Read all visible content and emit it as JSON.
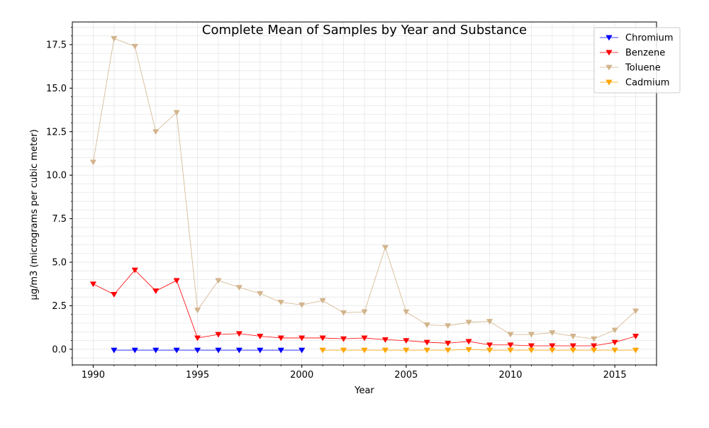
{
  "chart_data": {
    "type": "line",
    "title": "Complete Mean of Samples by Year and Substance",
    "xlabel": "Year",
    "ylabel": "μg/m3 (micrograms per cubic meter)",
    "xlim": [
      1989,
      2017
    ],
    "ylim": [
      -0.9,
      18.8
    ],
    "x_ticks": [
      1990,
      1995,
      2000,
      2005,
      2010,
      2015
    ],
    "x_tick_labels": [
      "1990",
      "1995",
      "2000",
      "2005",
      "2010",
      "2015"
    ],
    "y_ticks": [
      0,
      2.5,
      5,
      7.5,
      10,
      12.5,
      15,
      17.5
    ],
    "y_tick_labels": [
      "0.0",
      "2.5",
      "5.0",
      "7.5",
      "10.0",
      "12.5",
      "15.0",
      "17.5"
    ],
    "grid": true,
    "legend_position": "top-right",
    "series": [
      {
        "name": "Chromium",
        "color": "#0000ff",
        "x": [
          1991,
          1992,
          1993,
          1994,
          1995,
          1996,
          1997,
          1998,
          1999,
          2000
        ],
        "y": [
          -0.05,
          -0.05,
          -0.05,
          -0.05,
          -0.05,
          -0.05,
          -0.05,
          -0.05,
          -0.05,
          -0.05
        ]
      },
      {
        "name": "Benzene",
        "color": "#ff0000",
        "x": [
          1990,
          1991,
          1992,
          1993,
          1994,
          1995,
          1996,
          1997,
          1998,
          1999,
          2000,
          2001,
          2002,
          2003,
          2004,
          2005,
          2006,
          2007,
          2008,
          2009,
          2010,
          2011,
          2012,
          2013,
          2014,
          2015,
          2016
        ],
        "y": [
          3.75,
          3.15,
          4.55,
          3.35,
          3.95,
          0.65,
          0.85,
          0.9,
          0.75,
          0.65,
          0.65,
          0.65,
          0.6,
          0.65,
          0.55,
          0.5,
          0.4,
          0.35,
          0.45,
          0.25,
          0.25,
          0.2,
          0.2,
          0.2,
          0.2,
          0.4,
          0.75
        ]
      },
      {
        "name": "Toluene",
        "color": "#d2b48c",
        "x": [
          1990,
          1991,
          1992,
          1993,
          1994,
          1995,
          1996,
          1997,
          1998,
          1999,
          2000,
          2001,
          2002,
          2003,
          2004,
          2005,
          2006,
          2007,
          2008,
          2009,
          2010,
          2011,
          2012,
          2013,
          2014,
          2015,
          2016
        ],
        "y": [
          10.75,
          17.85,
          17.4,
          12.5,
          13.6,
          2.25,
          3.95,
          3.55,
          3.2,
          2.7,
          2.55,
          2.8,
          2.1,
          2.15,
          5.85,
          2.15,
          1.4,
          1.35,
          1.55,
          1.6,
          0.85,
          0.85,
          0.95,
          0.75,
          0.6,
          1.1,
          2.2
        ]
      },
      {
        "name": "Cadmium",
        "color": "#ffa500",
        "x": [
          2001,
          2002,
          2003,
          2004,
          2005,
          2006,
          2007,
          2008,
          2009,
          2010,
          2011,
          2012,
          2013,
          2014,
          2015,
          2016
        ],
        "y": [
          -0.05,
          -0.05,
          -0.05,
          -0.05,
          -0.05,
          -0.05,
          -0.05,
          -0.02,
          -0.05,
          -0.05,
          -0.05,
          -0.05,
          -0.05,
          -0.05,
          -0.05,
          -0.05
        ]
      }
    ]
  }
}
